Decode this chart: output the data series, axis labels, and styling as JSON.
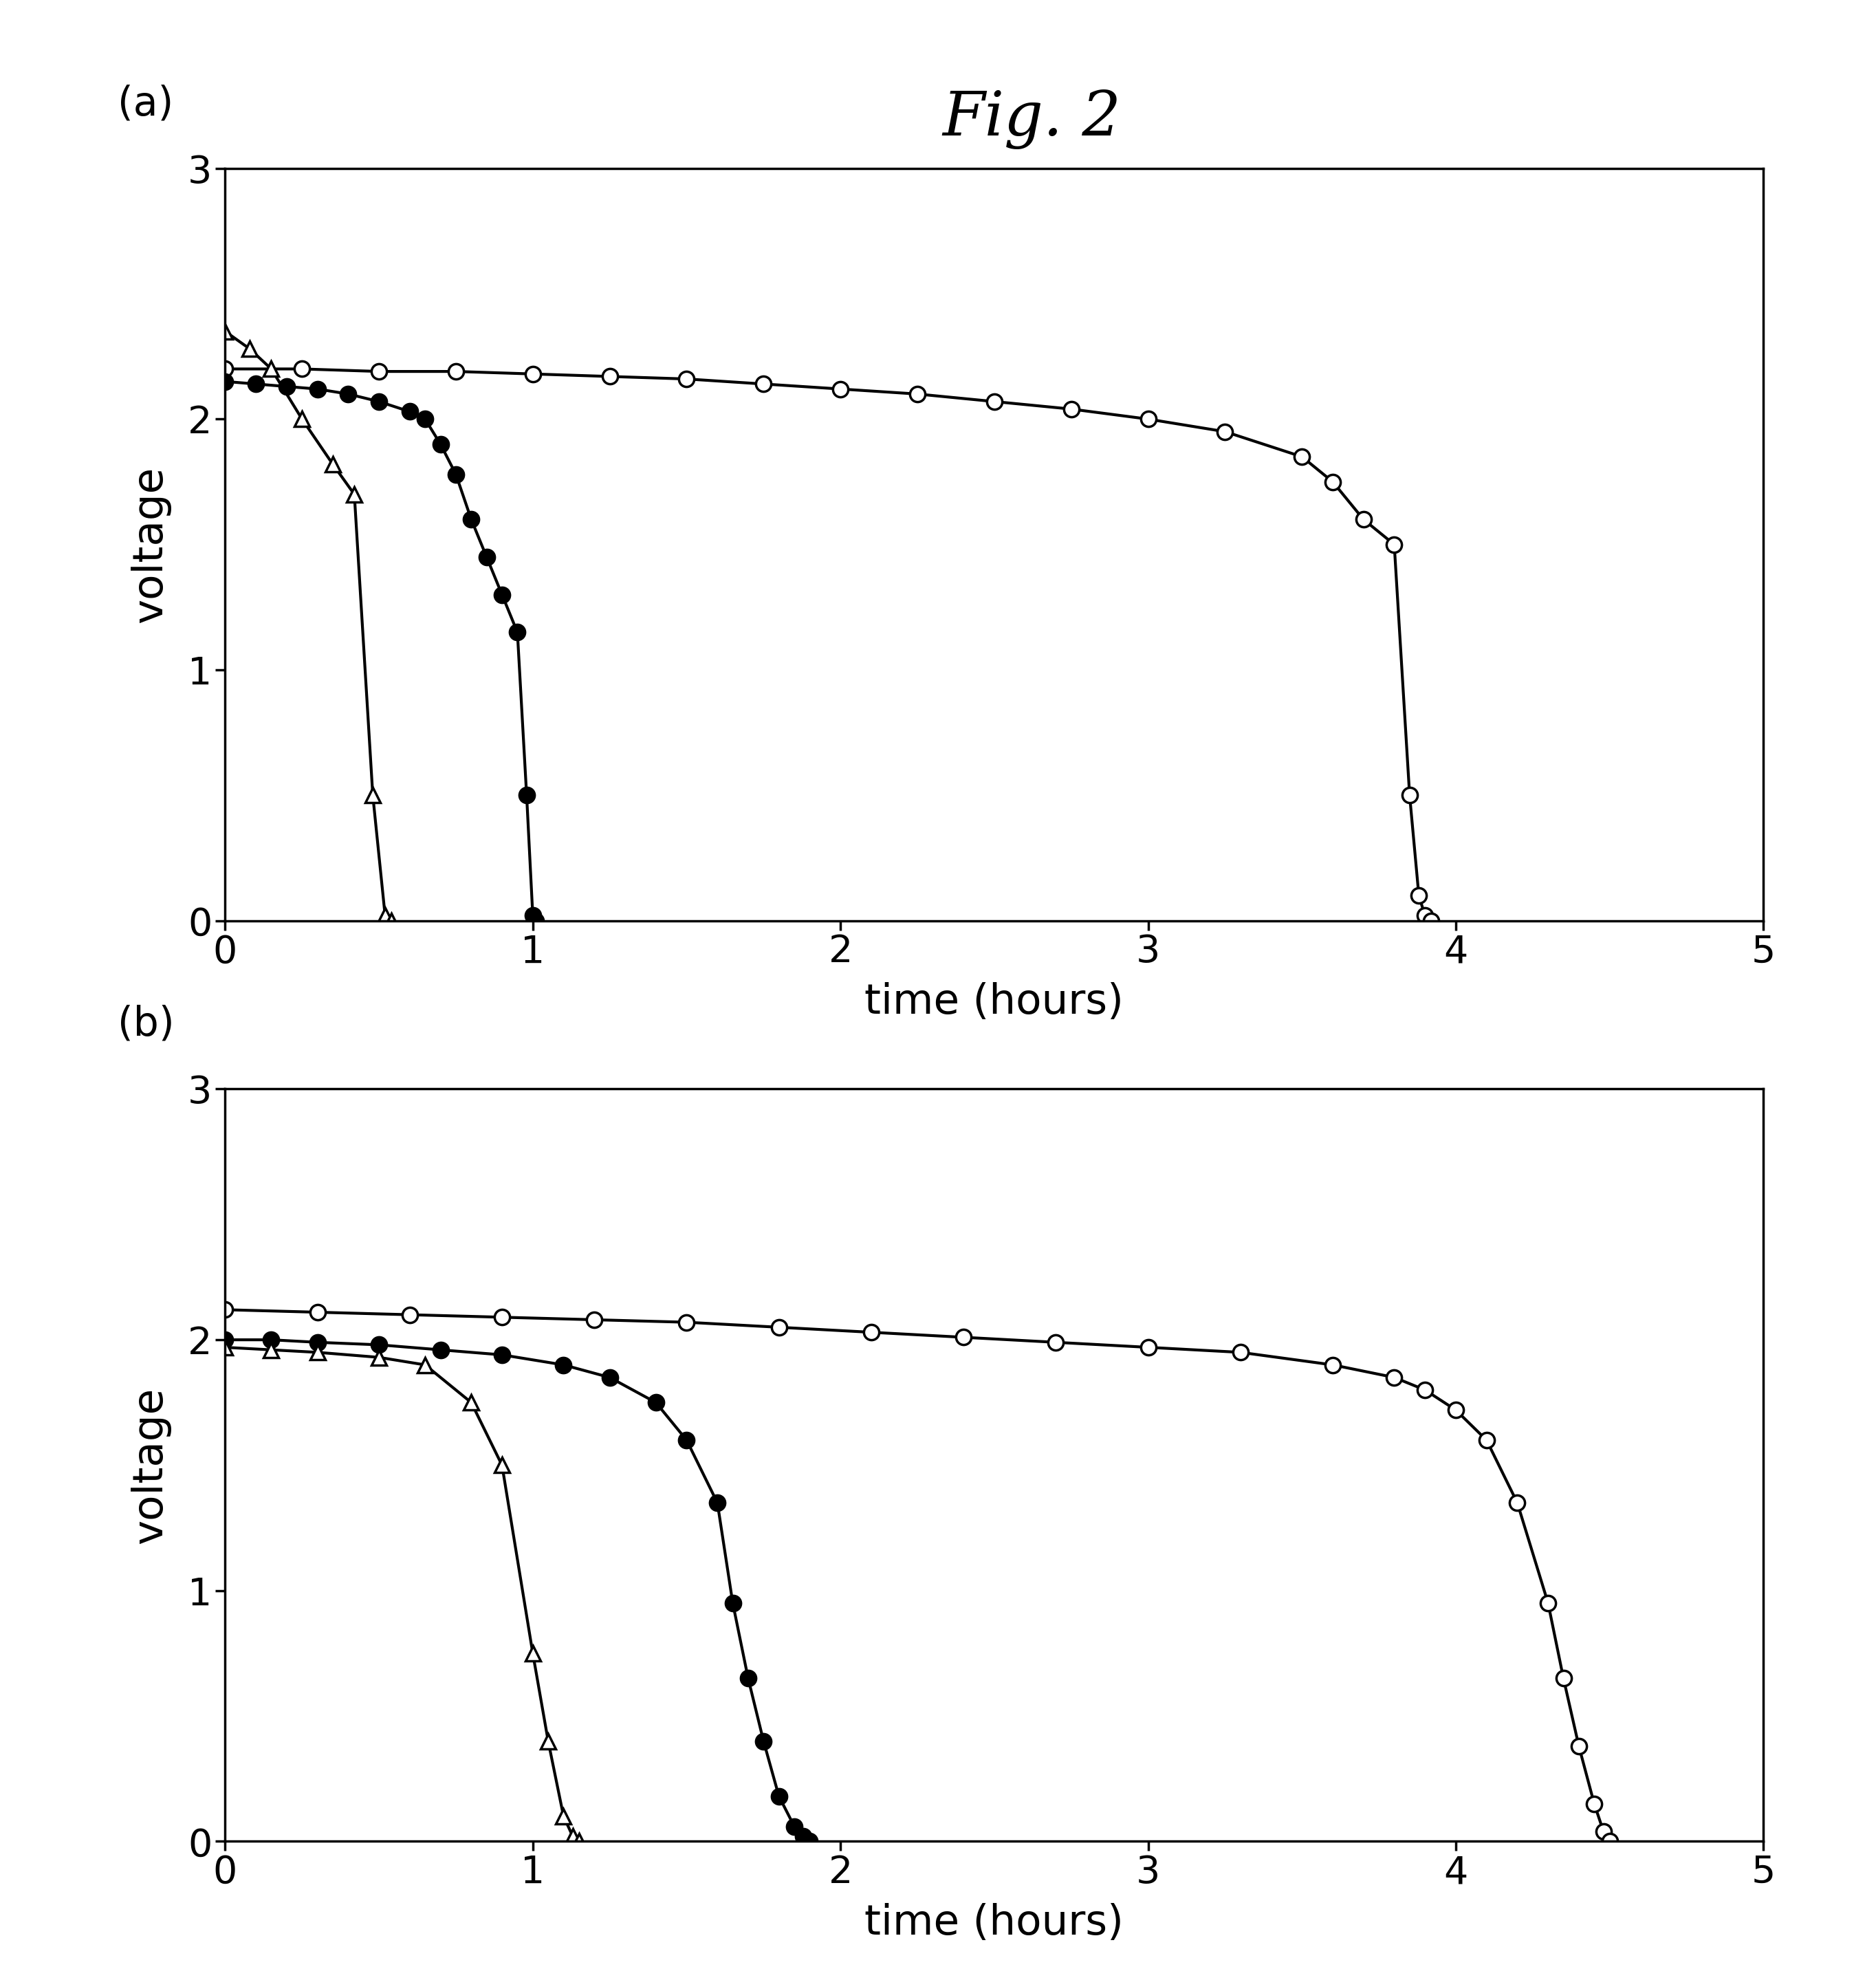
{
  "title": "Fig. 2",
  "fig_width": 27.28,
  "fig_height": 28.79,
  "background_color": "#ffffff",
  "subplot_a": {
    "label": "(a)",
    "xlim": [
      0,
      5
    ],
    "ylim": [
      0,
      3
    ],
    "xlabel": "time (hours)",
    "ylabel": "voltage",
    "xticks": [
      0,
      1,
      2,
      3,
      4,
      5
    ],
    "yticks": [
      0,
      1,
      2,
      3
    ],
    "circle_open": {
      "x": [
        0.0,
        0.25,
        0.5,
        0.75,
        1.0,
        1.25,
        1.5,
        1.75,
        2.0,
        2.25,
        2.5,
        2.75,
        3.0,
        3.25,
        3.5,
        3.6,
        3.7,
        3.8,
        3.85,
        3.88,
        3.9,
        3.92
      ],
      "y": [
        2.2,
        2.2,
        2.19,
        2.19,
        2.18,
        2.17,
        2.16,
        2.14,
        2.12,
        2.1,
        2.07,
        2.04,
        2.0,
        1.95,
        1.85,
        1.75,
        1.6,
        1.5,
        0.5,
        0.1,
        0.02,
        0.0
      ]
    },
    "circle_filled": {
      "x": [
        0.0,
        0.1,
        0.2,
        0.3,
        0.4,
        0.5,
        0.6,
        0.65,
        0.7,
        0.75,
        0.8,
        0.85,
        0.9,
        0.95,
        0.98,
        1.0,
        1.01
      ],
      "y": [
        2.15,
        2.14,
        2.13,
        2.12,
        2.1,
        2.07,
        2.03,
        2.0,
        1.9,
        1.78,
        1.6,
        1.45,
        1.3,
        1.15,
        0.5,
        0.02,
        0.0
      ]
    },
    "triangle_open": {
      "x": [
        0.0,
        0.08,
        0.15,
        0.25,
        0.35,
        0.42,
        0.48,
        0.52,
        0.54
      ],
      "y": [
        2.35,
        2.28,
        2.2,
        2.0,
        1.82,
        1.7,
        0.5,
        0.02,
        0.0
      ]
    }
  },
  "subplot_b": {
    "label": "(b)",
    "xlim": [
      0,
      5
    ],
    "ylim": [
      0,
      3
    ],
    "xlabel": "time (hours)",
    "ylabel": "voltage",
    "xticks": [
      0,
      1,
      2,
      3,
      4,
      5
    ],
    "yticks": [
      0,
      1,
      2,
      3
    ],
    "circle_open": {
      "x": [
        0.0,
        0.3,
        0.6,
        0.9,
        1.2,
        1.5,
        1.8,
        2.1,
        2.4,
        2.7,
        3.0,
        3.3,
        3.6,
        3.8,
        3.9,
        4.0,
        4.1,
        4.2,
        4.3,
        4.35,
        4.4,
        4.45,
        4.48,
        4.5
      ],
      "y": [
        2.12,
        2.11,
        2.1,
        2.09,
        2.08,
        2.07,
        2.05,
        2.03,
        2.01,
        1.99,
        1.97,
        1.95,
        1.9,
        1.85,
        1.8,
        1.72,
        1.6,
        1.35,
        0.95,
        0.65,
        0.38,
        0.15,
        0.04,
        0.0
      ]
    },
    "circle_filled": {
      "x": [
        0.0,
        0.15,
        0.3,
        0.5,
        0.7,
        0.9,
        1.1,
        1.25,
        1.4,
        1.5,
        1.6,
        1.65,
        1.7,
        1.75,
        1.8,
        1.85,
        1.88,
        1.9
      ],
      "y": [
        2.0,
        2.0,
        1.99,
        1.98,
        1.96,
        1.94,
        1.9,
        1.85,
        1.75,
        1.6,
        1.35,
        0.95,
        0.65,
        0.4,
        0.18,
        0.06,
        0.02,
        0.0
      ]
    },
    "triangle_open": {
      "x": [
        0.0,
        0.15,
        0.3,
        0.5,
        0.65,
        0.8,
        0.9,
        1.0,
        1.05,
        1.1,
        1.13,
        1.15
      ],
      "y": [
        1.97,
        1.96,
        1.95,
        1.93,
        1.9,
        1.75,
        1.5,
        0.75,
        0.4,
        0.1,
        0.02,
        0.0
      ]
    }
  },
  "line_color": "#000000",
  "marker_size_circle": 16,
  "marker_size_triangle": 16,
  "linewidth": 3.0,
  "title_fontsize": 64,
  "label_fontsize": 44,
  "tick_fontsize": 40,
  "sublabel_fontsize": 42
}
